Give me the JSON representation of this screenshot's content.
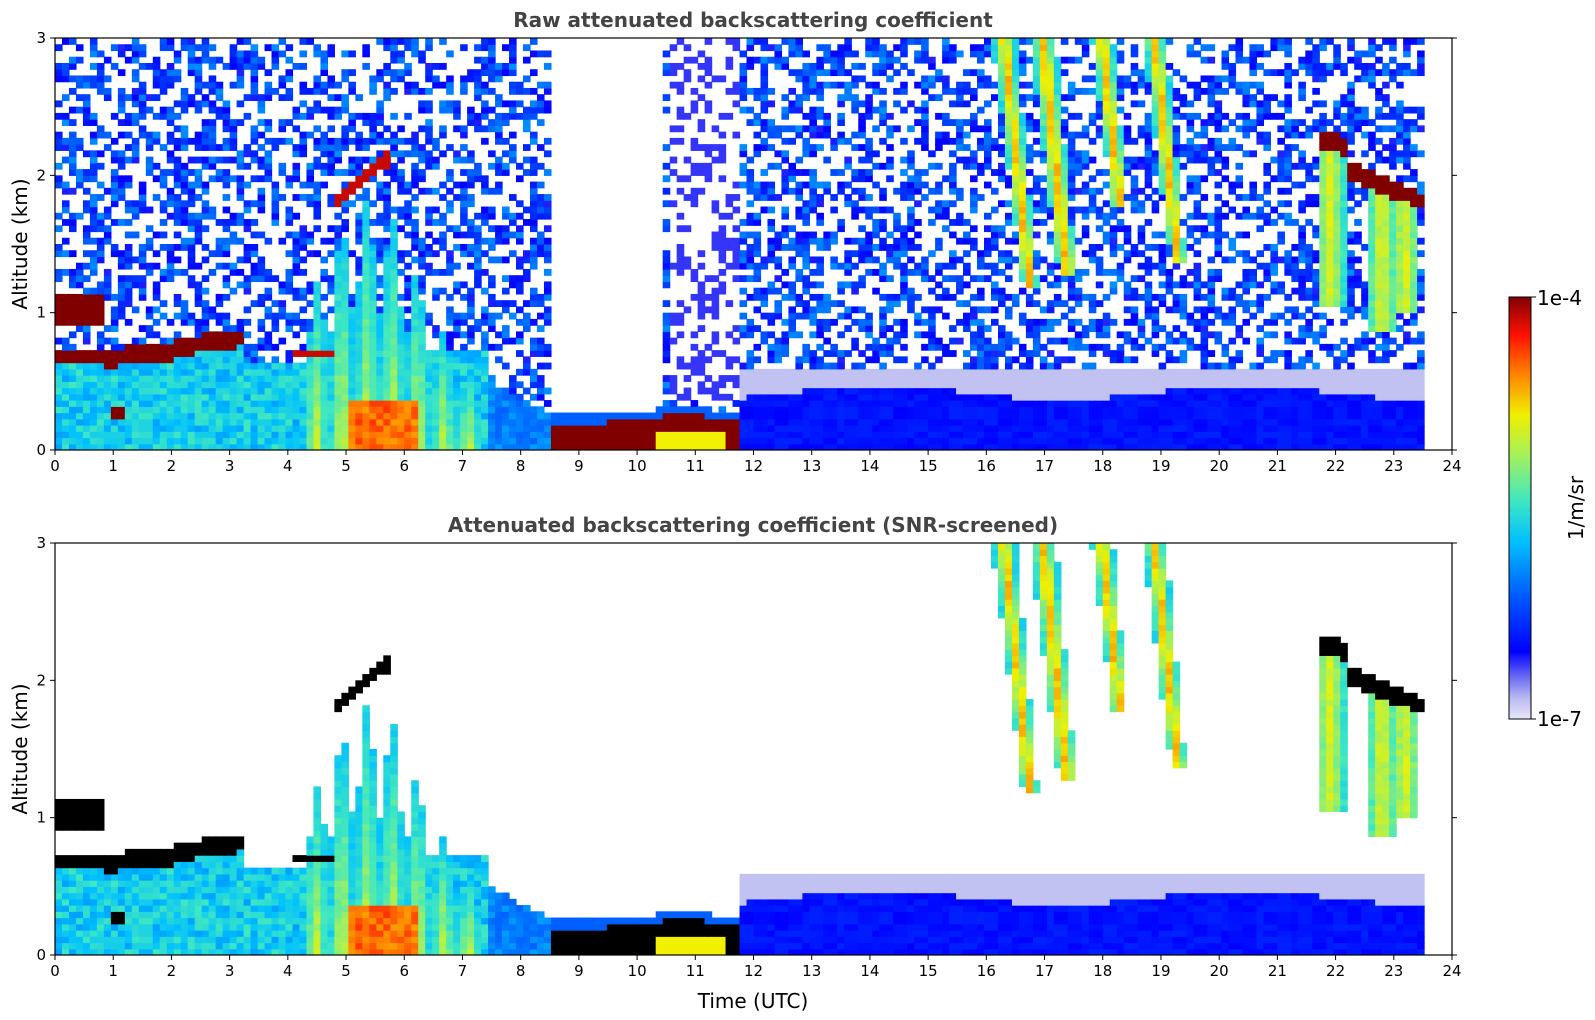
{
  "chart_data": [
    {
      "type": "heatmap",
      "title": "Raw attenuated backscattering coefficient",
      "xlabel": "",
      "ylabel": "Altitude (km)",
      "xlim": [
        0,
        24
      ],
      "ylim": [
        0,
        3
      ],
      "x_ticks": [
        "0",
        "1",
        "2",
        "3",
        "4",
        "5",
        "6",
        "7",
        "8",
        "9",
        "10",
        "11",
        "12",
        "13",
        "14",
        "15",
        "16",
        "17",
        "18",
        "19",
        "20",
        "21",
        "22",
        "23",
        "24"
      ],
      "y_ticks": [
        "0",
        "1",
        "2",
        "3"
      ],
      "data_end_hour": 23.55,
      "features": [
        {
          "name": "boundary layer aerosol",
          "t0": 0,
          "t1": 7.4,
          "z0": 0,
          "z1": 0.6,
          "level": 0.45
        },
        {
          "name": "convective plumes",
          "t0": 4.3,
          "t1": 6.9,
          "z0": 0,
          "z1": 1.6,
          "level": 0.6
        },
        {
          "name": "low cloud layer",
          "t0": 0,
          "t1": 3.2,
          "z0": 0.6,
          "z1": 0.85,
          "level": 1.0
        },
        {
          "name": "low fog/cloud",
          "t0": 8.5,
          "t1": 11.8,
          "z0": 0.05,
          "z1": 0.28,
          "level": 1.0
        },
        {
          "name": "elevated cloud",
          "t0": 21.7,
          "t1": 23.55,
          "z0": 1.65,
          "z1": 2.3,
          "level": 1.0
        },
        {
          "name": "cirrus fallstreaks",
          "t0": 16.5,
          "t1": 19.8,
          "z0": 1.2,
          "z1": 3.0,
          "level": 0.6
        }
      ]
    },
    {
      "type": "heatmap",
      "title": "Attenuated backscattering coefficient (SNR-screened)",
      "xlabel": "Time (UTC)",
      "ylabel": "Altitude (km)",
      "xlim": [
        0,
        24
      ],
      "ylim": [
        0,
        3
      ],
      "x_ticks": [
        "0",
        "1",
        "2",
        "3",
        "4",
        "5",
        "6",
        "7",
        "8",
        "9",
        "10",
        "11",
        "12",
        "13",
        "14",
        "15",
        "16",
        "17",
        "18",
        "19",
        "20",
        "21",
        "22",
        "23",
        "24"
      ],
      "y_ticks": [
        "0",
        "1",
        "2",
        "3"
      ],
      "screened": true
    }
  ],
  "colorbar": {
    "label": "1/m/sr",
    "max_label": "1e-4",
    "min_label": "1e-7",
    "scale": "log",
    "range": [
      1e-07,
      0.0001
    ]
  }
}
